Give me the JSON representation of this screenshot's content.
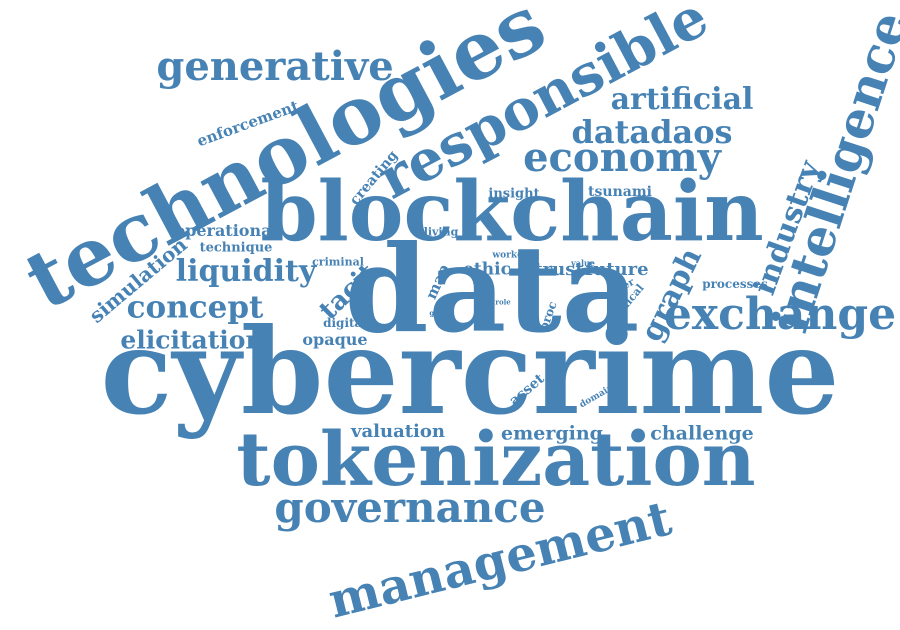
{
  "palette": {
    "word_color": "#4682b4",
    "background": "#ffffff"
  },
  "words": [
    "cybercrime",
    "data",
    "technologies",
    "blockchain",
    "tokenization",
    "responsible",
    "intelligence",
    "management",
    "governance",
    "exchange",
    "economy",
    "generative",
    "artificial",
    "datadaos",
    "liquidity",
    "concept",
    "elicitation",
    "industry",
    "graph",
    "tacit",
    "simulation",
    "enforcement",
    "creating",
    "opaque",
    "valuation",
    "emerging",
    "challenge",
    "operational",
    "technique",
    "insight",
    "tsunami",
    "living",
    "criminal",
    "ethic",
    "trust",
    "future",
    "map",
    "worker",
    "value",
    "paper",
    "ethical",
    "processes",
    "proc",
    "digital",
    "game",
    "asset",
    "domain",
    "role"
  ]
}
